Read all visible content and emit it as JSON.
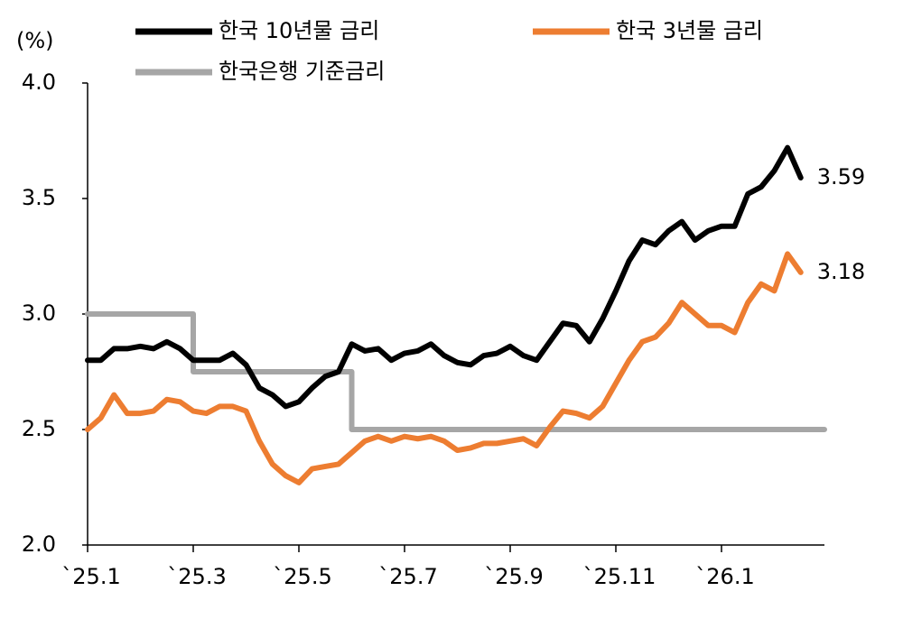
{
  "chart_data": {
    "type": "line",
    "unit_label": "(%)",
    "categories": [
      "`25.1",
      null,
      null,
      null,
      null,
      null,
      null,
      null,
      "`25.3",
      null,
      null,
      null,
      null,
      null,
      null,
      null,
      "`25.5",
      null,
      null,
      null,
      null,
      null,
      null,
      null,
      "`25.7",
      null,
      null,
      null,
      null,
      null,
      null,
      null,
      "`25.9",
      null,
      null,
      null,
      null,
      null,
      null,
      null,
      "`25.11",
      null,
      null,
      null,
      null,
      null,
      null,
      null,
      "`26.1",
      null,
      null,
      null,
      null,
      null,
      null
    ],
    "series": [
      {
        "name": "한국 10년물 금리",
        "color": "#000000",
        "end_label": true,
        "values": [
          2.8,
          2.8,
          2.85,
          2.85,
          2.86,
          2.85,
          2.88,
          2.85,
          2.8,
          2.8,
          2.8,
          2.83,
          2.78,
          2.68,
          2.65,
          2.6,
          2.62,
          2.68,
          2.73,
          2.75,
          2.87,
          2.84,
          2.85,
          2.8,
          2.83,
          2.84,
          2.87,
          2.82,
          2.79,
          2.78,
          2.82,
          2.83,
          2.86,
          2.82,
          2.8,
          2.88,
          2.96,
          2.95,
          2.88,
          2.98,
          3.1,
          3.23,
          3.32,
          3.3,
          3.36,
          3.4,
          3.32,
          3.36,
          3.38,
          3.38,
          3.52,
          3.55,
          3.62,
          3.72,
          3.59
        ]
      },
      {
        "name": "한국 3년물 금리",
        "color": "#ed7d31",
        "end_label": true,
        "values": [
          2.5,
          2.55,
          2.65,
          2.57,
          2.57,
          2.58,
          2.63,
          2.62,
          2.58,
          2.57,
          2.6,
          2.6,
          2.58,
          2.45,
          2.35,
          2.3,
          2.27,
          2.33,
          2.34,
          2.35,
          2.4,
          2.45,
          2.47,
          2.45,
          2.47,
          2.46,
          2.47,
          2.45,
          2.41,
          2.42,
          2.44,
          2.44,
          2.45,
          2.46,
          2.43,
          2.51,
          2.58,
          2.57,
          2.55,
          2.6,
          2.7,
          2.8,
          2.88,
          2.9,
          2.96,
          3.05,
          3.0,
          2.95,
          2.95,
          2.92,
          3.05,
          3.13,
          3.1,
          3.26,
          3.18
        ]
      },
      {
        "name": "한국은행 기준금리",
        "color": "#a6a6a6",
        "step": true,
        "values": [
          3.0,
          3.0,
          3.0,
          3.0,
          3.0,
          3.0,
          3.0,
          3.0,
          2.75,
          2.75,
          2.75,
          2.75,
          2.75,
          2.75,
          2.75,
          2.75,
          2.75,
          2.75,
          2.75,
          2.75,
          2.5,
          2.5,
          2.5,
          2.5,
          2.5,
          2.5,
          2.5,
          2.5,
          2.5,
          2.5,
          2.5,
          2.5,
          2.5,
          2.5,
          2.5,
          2.5,
          2.5,
          2.5,
          2.5,
          2.5,
          2.5,
          2.5,
          2.5,
          2.5,
          2.5,
          2.5,
          2.5,
          2.5,
          2.5,
          2.5,
          2.5,
          2.5,
          2.5,
          2.5,
          2.5
        ]
      }
    ],
    "ylim": [
      2.0,
      4.0
    ],
    "yticks": [
      {
        "value": 2.0,
        "label": "2.0"
      },
      2.5,
      {
        "value": 3.0,
        "label": "3.0"
      },
      3.5,
      {
        "value": 4.0,
        "label": "4.0"
      }
    ],
    "grid": false
  }
}
